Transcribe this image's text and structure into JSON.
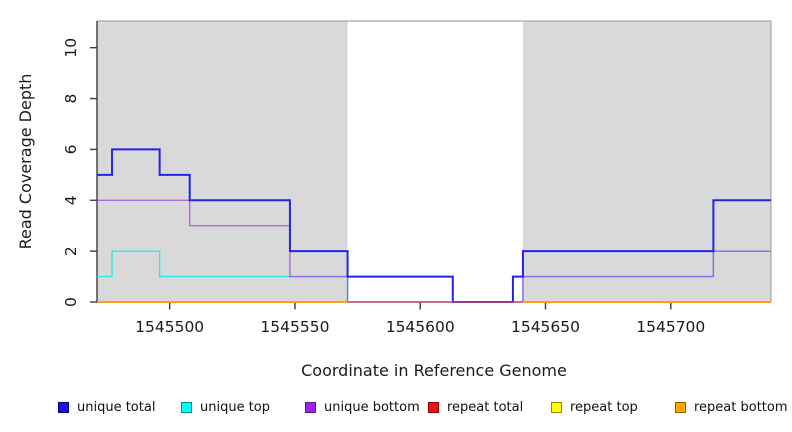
{
  "chart_data": {
    "type": "line",
    "subtype": "step-coverage-plot",
    "title": "",
    "xlabel": "Coordinate in Reference Genome",
    "ylabel": "Read Coverage Depth",
    "xlim": [
      1545471,
      1545740
    ],
    "ylim": [
      0,
      11.05
    ],
    "xticks": [
      1545500,
      1545550,
      1545600,
      1545650,
      1545700
    ],
    "xtick_labels": [
      "1545500",
      "1545550",
      "1545600",
      "1545650",
      "1545700"
    ],
    "yticks": [
      0,
      2,
      4,
      6,
      8,
      10
    ],
    "ytick_labels": [
      "0",
      "2",
      "4",
      "6",
      "8",
      "10"
    ],
    "grid": false,
    "legend_position": "bottom",
    "panel_color": "#d9d9d9",
    "masked_regions": [
      {
        "start": 1545471,
        "end": 1545571
      },
      {
        "start": 1545641,
        "end": 1545740
      }
    ],
    "series": [
      {
        "name": "unique top",
        "color": "#2ee6e6",
        "width": 1.4,
        "opacity": 1,
        "segments": [
          {
            "points": [
              [
                1545471,
                1
              ],
              [
                1545477,
                2
              ],
              [
                1545496,
                1
              ],
              [
                1545571,
                0
              ],
              [
                1545641,
                1
              ],
              [
                1545717,
                2
              ]
            ],
            "end": 1545740
          }
        ]
      },
      {
        "name": "unique bottom",
        "color": "#a64ae0",
        "width": 1.4,
        "opacity": 0.8,
        "segments": [
          {
            "points": [
              [
                1545471,
                4
              ],
              [
                1545508,
                3
              ],
              [
                1545548,
                1
              ],
              [
                1545571,
                0
              ],
              [
                1545641,
                1
              ],
              [
                1545717,
                2
              ]
            ],
            "end": 1545740
          }
        ]
      },
      {
        "name": "unique total",
        "color": "#2323e8",
        "width": 2,
        "opacity": 1,
        "segments": [
          {
            "points": [
              [
                1545471,
                5
              ],
              [
                1545477,
                6
              ],
              [
                1545496,
                5
              ],
              [
                1545508,
                4
              ],
              [
                1545548,
                2
              ],
              [
                1545571,
                1
              ],
              [
                1545613,
                0
              ],
              [
                1545637,
                1
              ],
              [
                1545641,
                2
              ],
              [
                1545717,
                4
              ]
            ],
            "end": 1545740
          }
        ]
      },
      {
        "name": "repeat total",
        "color": "#d84a64",
        "width": 1.3,
        "opacity": 1,
        "segments": [
          {
            "points": [
              [
                1545471,
                0
              ]
            ],
            "end": 1545740
          }
        ]
      },
      {
        "name": "repeat top",
        "color": "#ffe800",
        "width": 1.3,
        "opacity": 1,
        "segments": [
          {
            "points": [
              [
                1545471,
                0
              ]
            ],
            "end": 1545571
          },
          {
            "points": [
              [
                1545641,
                0
              ]
            ],
            "end": 1545740
          }
        ]
      },
      {
        "name": "repeat bottom",
        "color": "#ff9d20",
        "width": 2,
        "opacity": 1,
        "segments": [
          {
            "points": [
              [
                1545471,
                0
              ]
            ],
            "end": 1545571
          },
          {
            "points": [
              [
                1545641,
                0
              ]
            ],
            "end": 1545740
          }
        ]
      }
    ]
  },
  "legend": {
    "items": [
      {
        "label": "unique total",
        "fill": "#1a12e0",
        "border": "#00008b"
      },
      {
        "label": "unique top",
        "fill": "#00ffff",
        "border": "#008b8b"
      },
      {
        "label": "unique bottom",
        "fill": "#a020f0",
        "border": "#551a8b"
      },
      {
        "label": "repeat total",
        "fill": "#ee1111",
        "border": "#8b0000"
      },
      {
        "label": "repeat top",
        "fill": "#ffff00",
        "border": "#8b8b00"
      },
      {
        "label": "repeat bottom",
        "fill": "#ffa500",
        "border": "#8b5a00"
      }
    ]
  },
  "style": {
    "axis_color": "#3c3c3c",
    "border_color": "#a8a8a8",
    "text_color": "#1a1a1a"
  }
}
